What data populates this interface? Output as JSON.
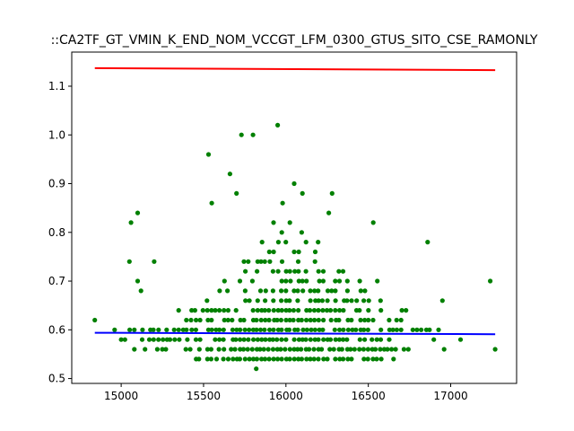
{
  "chart_data": {
    "type": "scatter",
    "title": "::CA2TF_GT_VMIN_K_END_NOM_VCCGT_LFM_0300_GTUS_SITO_CSE_RAMONLY",
    "xlabel": "",
    "ylabel": "",
    "xlim": [
      14700,
      17400
    ],
    "ylim": [
      0.49,
      1.17
    ],
    "grid": false,
    "x_ticks": [
      15000,
      15500,
      16000,
      16500,
      17000
    ],
    "y_ticks": [
      0.5,
      0.6,
      0.7,
      0.8,
      0.9,
      1.0,
      1.1
    ],
    "x_tick_labels": [
      "15000",
      "15500",
      "16000",
      "16500",
      "17000"
    ],
    "y_tick_labels": [
      "0.5",
      "0.6",
      "0.7",
      "0.8",
      "0.9",
      "1.0",
      "1.1"
    ],
    "colors": {
      "points": "#008000",
      "upper_line": "#ff0000",
      "lower_line": "#0000ff"
    },
    "lines": [
      {
        "color": "#ff0000",
        "x": [
          14840,
          17270
        ],
        "y": [
          1.137,
          1.133
        ]
      },
      {
        "color": "#0000ff",
        "x": [
          14840,
          17270
        ],
        "y": [
          0.594,
          0.591
        ]
      }
    ],
    "outliers": [
      [
        14840,
        0.62
      ],
      [
        15060,
        0.82
      ],
      [
        15100,
        0.84
      ],
      [
        15050,
        0.74
      ],
      [
        15200,
        0.74
      ],
      [
        15530,
        0.96
      ],
      [
        15660,
        0.92
      ],
      [
        15730,
        1.0
      ],
      [
        15800,
        1.0
      ],
      [
        15950,
        1.02
      ],
      [
        16050,
        0.9
      ],
      [
        15980,
        0.86
      ],
      [
        16100,
        0.88
      ],
      [
        16280,
        0.88
      ],
      [
        16260,
        0.84
      ],
      [
        15550,
        0.86
      ],
      [
        15700,
        0.88
      ],
      [
        16530,
        0.82
      ],
      [
        16860,
        0.78
      ],
      [
        17240,
        0.7
      ],
      [
        17270,
        0.56
      ],
      [
        16960,
        0.56
      ],
      [
        17060,
        0.58
      ],
      [
        15820,
        0.52
      ],
      [
        15100,
        0.7
      ],
      [
        15120,
        0.68
      ],
      [
        14960,
        0.6
      ],
      [
        15000,
        0.58
      ],
      [
        15080,
        0.56
      ],
      [
        16950,
        0.66
      ]
    ],
    "band_levels": [
      0.54,
      0.56,
      0.58,
      0.6,
      0.62,
      0.64,
      0.66,
      0.68,
      0.7,
      0.72,
      0.74,
      0.76,
      0.78,
      0.8,
      0.82
    ],
    "band_extents": [
      [
        15250,
        16650
      ],
      [
        15120,
        16850
      ],
      [
        15000,
        17000
      ],
      [
        15050,
        16950
      ],
      [
        15200,
        16800
      ],
      [
        15300,
        16750
      ],
      [
        15400,
        16650
      ],
      [
        15450,
        16600
      ],
      [
        15550,
        16550
      ],
      [
        15650,
        16400
      ],
      [
        15750,
        16350
      ],
      [
        15800,
        16300
      ],
      [
        15850,
        16250
      ],
      [
        15950,
        16150
      ],
      [
        15850,
        16050
      ]
    ],
    "band_fill": [
      0.95,
      0.95,
      0.98,
      0.95,
      0.85,
      0.8,
      0.7,
      0.65,
      0.55,
      0.5,
      0.45,
      0.35,
      0.25,
      0.2,
      0.15
    ],
    "x_step": 25
  }
}
